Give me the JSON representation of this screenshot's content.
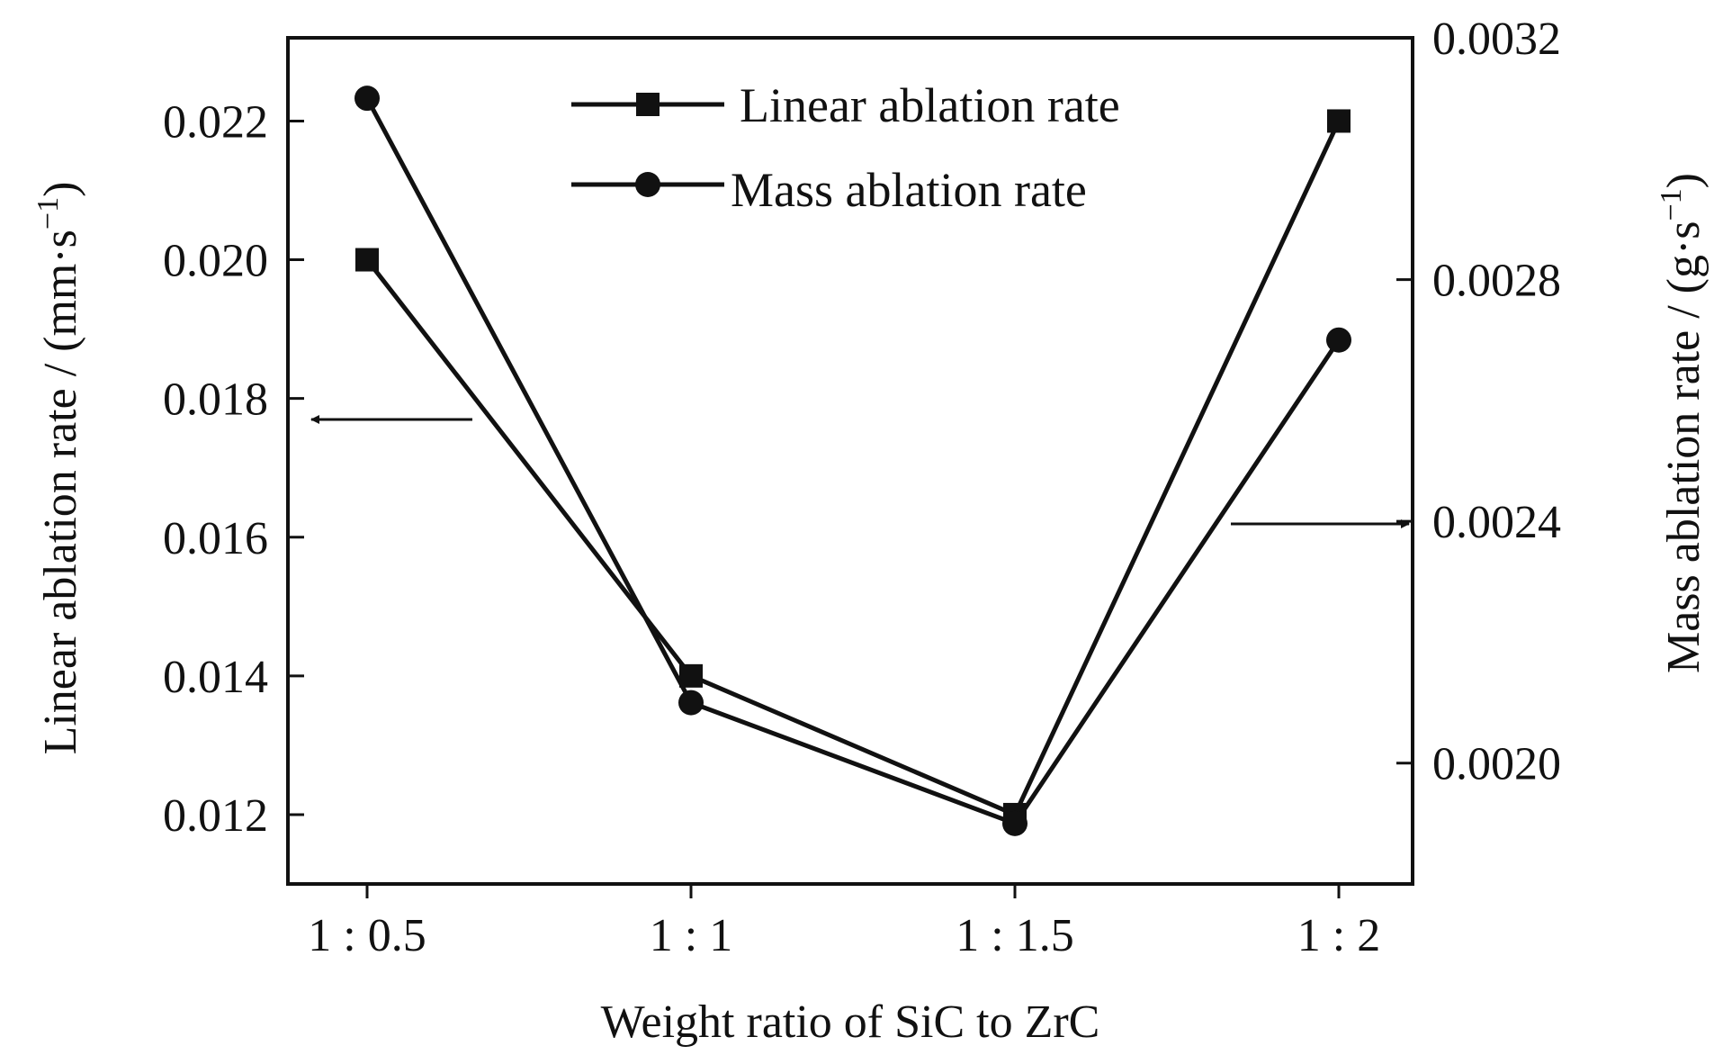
{
  "chart_data": {
    "type": "line",
    "categories": [
      "1 : 0.5",
      "1 : 1",
      "1 : 1.5",
      "1 : 2"
    ],
    "xlabel": "Weight ratio of SiC to ZrC",
    "ylabel_left": {
      "prefix": "Linear ablation rate / (mm·s",
      "exponent": "−1",
      "suffix": ")"
    },
    "ylabel_right": {
      "prefix": "Mass ablation rate / (g·s",
      "exponent": "−1",
      "suffix": ")"
    },
    "y_left": {
      "ylim": [
        0.011,
        0.0232
      ],
      "ticks": [
        0.012,
        0.014,
        0.016,
        0.018,
        0.02,
        0.022
      ],
      "tick_labels": [
        "0.012",
        "0.014",
        "0.016",
        "0.018",
        "0.020",
        "0.022"
      ]
    },
    "y_right": {
      "ylim": [
        0.0018,
        0.0032
      ],
      "ticks": [
        0.002,
        0.0024,
        0.0028,
        0.0032
      ],
      "tick_labels": [
        "0.0020",
        "0.0024",
        "0.0028",
        "0.0032"
      ]
    },
    "series": [
      {
        "name": "Linear ablation rate",
        "axis": "left",
        "marker": "square",
        "values": [
          0.02,
          0.014,
          0.012,
          0.022
        ]
      },
      {
        "name": "Mass ablation rate",
        "axis": "right",
        "marker": "circle",
        "values": [
          0.0031,
          0.0021,
          0.0019,
          0.0027
        ]
      }
    ],
    "annotations": [
      {
        "type": "arrow",
        "direction": "left",
        "meaning": "points to left axis for linear ablation rate"
      },
      {
        "type": "arrow",
        "direction": "right",
        "meaning": "points to right axis for mass ablation rate"
      }
    ],
    "legend_position": "top-center",
    "grid": false,
    "colors": {
      "line": "#111111",
      "marker": "#111111"
    }
  }
}
